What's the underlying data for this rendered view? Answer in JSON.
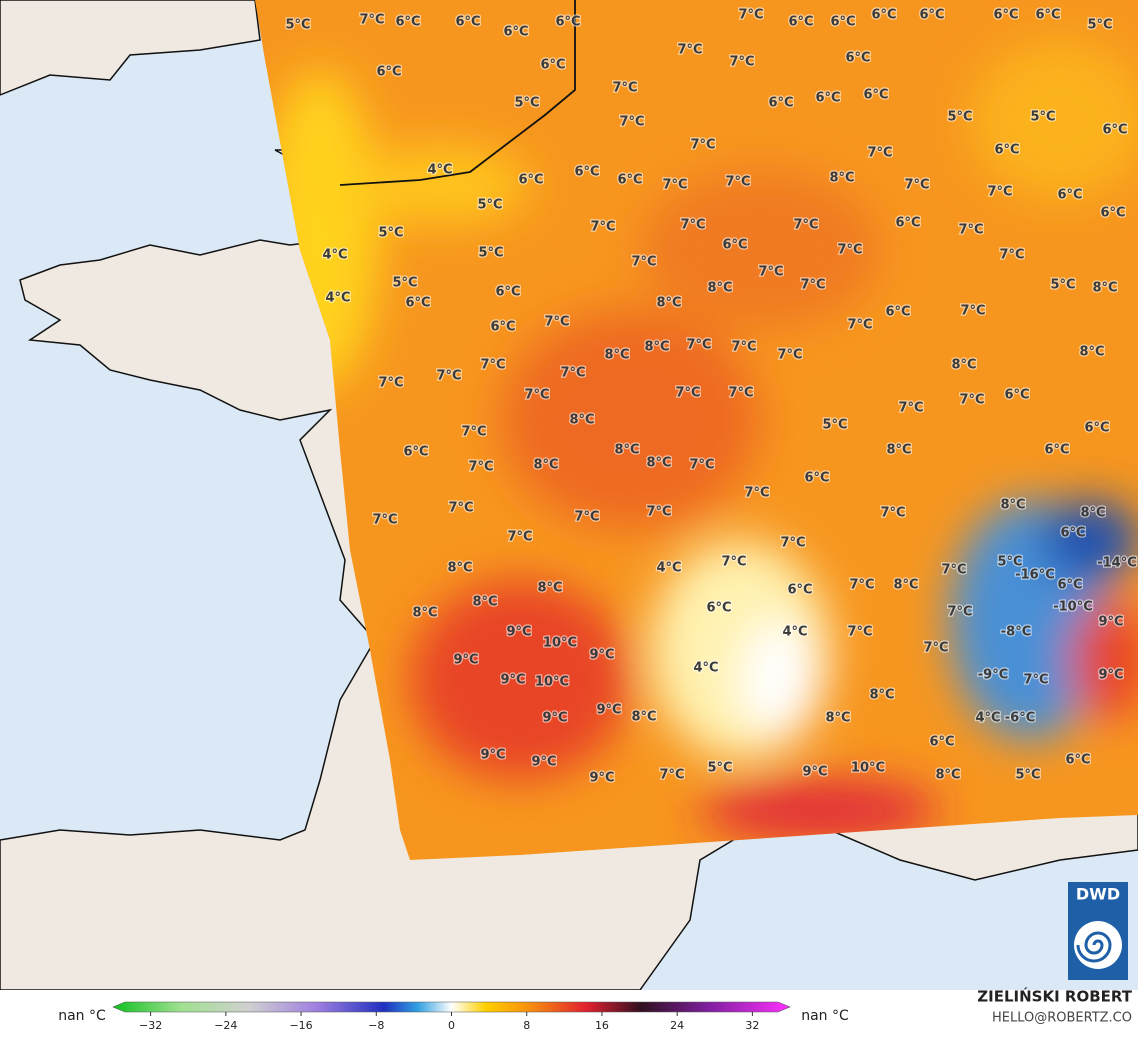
{
  "map": {
    "labels": [
      "5°C",
      "6°C",
      "7°C",
      "6°C",
      "6°C",
      "6°C",
      "6°C",
      "6°C",
      "5°C",
      "7°C",
      "7°C",
      "7°C",
      "7°C",
      "6°C",
      "6°C",
      "6°C",
      "6°C",
      "6°C",
      "6°C",
      "5°C",
      "6°C",
      "6°C",
      "6°C",
      "6°C",
      "5°C",
      "5°C",
      "6°C",
      "6°C",
      "7°C",
      "7°C",
      "7°C",
      "4°C",
      "6°C",
      "6°C",
      "6°C",
      "7°C",
      "7°C",
      "8°C",
      "7°C",
      "7°C",
      "6°C",
      "6°C",
      "5°C",
      "5°C",
      "4°C",
      "5°C",
      "7°C",
      "7°C",
      "6°C",
      "7°C",
      "6°C",
      "7°C",
      "7°C",
      "7°C",
      "4°C",
      "5°C",
      "6°C",
      "6°C",
      "7°C",
      "7°C",
      "7°C",
      "8°C",
      "8°C",
      "5°C",
      "8°C",
      "6°C",
      "7°C",
      "6°C",
      "7°C",
      "7°C",
      "8°C",
      "8°C",
      "7°C",
      "7°C",
      "7°C",
      "8°C",
      "7°C",
      "7°C",
      "7°C",
      "7°C",
      "8°C",
      "7°C",
      "7°C",
      "7°C",
      "7°C",
      "6°C",
      "7°C",
      "8°C",
      "5°C",
      "6°C",
      "7°C",
      "6°C",
      "8°C",
      "8°C",
      "6°C",
      "7°C",
      "8°C",
      "8°C",
      "7°C",
      "6°C",
      "7°C",
      "7°C",
      "7°C",
      "7°C",
      "7°C",
      "7°C",
      "8°C",
      "8°C",
      "7°C",
      "6°C",
      "7°C",
      "7°C",
      "8°C",
      "4°C",
      "7°C",
      "5°C",
      "-16°C",
      "-14°C",
      "8°C",
      "8°C",
      "6°C",
      "7°C",
      "8°C",
      "6°C",
      "8°C",
      "6°C",
      "7°C",
      "-10°C",
      "9°C",
      "9°C",
      "10°C",
      "4°C",
      "7°C",
      "-8°C",
      "9°C",
      "9°C",
      "7°C",
      "4°C",
      "9°C",
      "10°C",
      "-9°C",
      "9°C",
      "7°C",
      "8°C",
      "9°C",
      "8°C",
      "9°C",
      "8°C",
      "-6°C",
      "4°C",
      "6°C",
      "9°C",
      "9°C",
      "5°C",
      "10°C",
      "9°C",
      "9°C",
      "7°C",
      "8°C",
      "5°C",
      "6°C"
    ]
  },
  "legend": {
    "left_label": "nan °C",
    "right_label": "nan °C",
    "colorbar": {
      "lim": [
        -36,
        36
      ],
      "ticks": [
        {
          "value": -32,
          "label": "−32"
        },
        {
          "value": -24,
          "label": "−24"
        },
        {
          "value": -16,
          "label": "−16"
        },
        {
          "value": -8,
          "label": "−8"
        },
        0,
        8,
        16,
        24,
        32
      ]
    }
  },
  "credits": {
    "author": "ZIELIŃSKI ROBERT",
    "contact": "HELLO@ROBERTZ.CO"
  },
  "logo": "DWD"
}
